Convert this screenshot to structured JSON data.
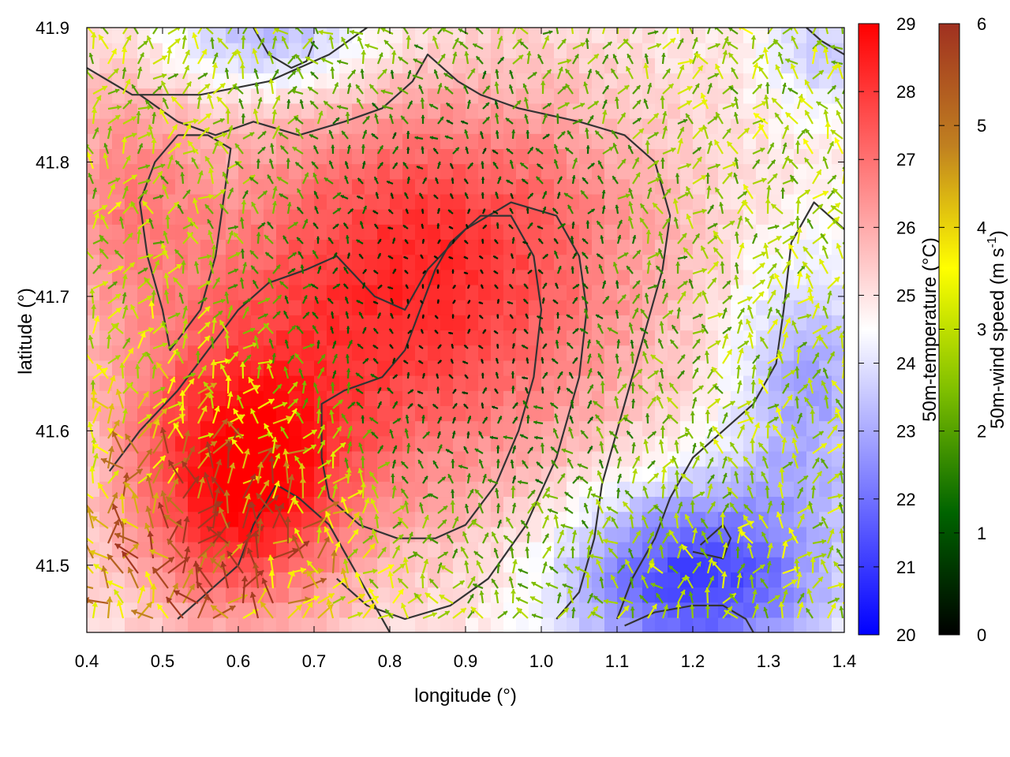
{
  "chart_data": {
    "type": "heatmap",
    "title": "",
    "xlabel": "longitude (°)",
    "ylabel": "latitude (°)",
    "xlim": [
      0.4,
      1.4
    ],
    "ylim": [
      41.45,
      41.9
    ],
    "x_ticks": [
      0.4,
      0.5,
      0.6,
      0.7,
      0.8,
      0.9,
      1.0,
      1.1,
      1.2,
      1.3,
      1.4
    ],
    "x_tick_labels": [
      "0.4",
      "0.5",
      "0.6",
      "0.7",
      "0.8",
      "0.9",
      "1.0",
      "1.1",
      "1.2",
      "1.3",
      "1.4"
    ],
    "y_ticks": [
      41.5,
      41.6,
      41.7,
      41.8,
      41.9
    ],
    "y_tick_labels": [
      "41.5",
      "41.6",
      "41.7",
      "41.8",
      "41.9"
    ],
    "colorbars": [
      {
        "name": "temperature",
        "label": "50m-temperature (°C)",
        "range": [
          20,
          29
        ],
        "ticks": [
          20,
          21,
          22,
          23,
          24,
          25,
          26,
          27,
          28,
          29
        ],
        "tick_labels": [
          "20",
          "21",
          "22",
          "23",
          "24",
          "25",
          "26",
          "27",
          "28",
          "29"
        ],
        "colors": [
          "#0000ff",
          "#ffffff",
          "#ff0000"
        ]
      },
      {
        "name": "wind_speed",
        "label_main": "50m-wind speed (m s",
        "label_sup": "-1",
        "label_end": ")",
        "range": [
          0,
          6
        ],
        "ticks": [
          0,
          1,
          2,
          3,
          4,
          5,
          6
        ],
        "tick_labels": [
          "0",
          "1",
          "2",
          "3",
          "4",
          "5",
          "6"
        ],
        "colors": [
          "#000000",
          "#006400",
          "#7fbf00",
          "#ffff00",
          "#c08020",
          "#a03020"
        ]
      }
    ],
    "temperature_field": {
      "background": 24.8,
      "features": [
        {
          "lon": 0.6,
          "lat": 41.56,
          "amp": 3.6,
          "sigma_lon": 0.1,
          "sigma_lat": 0.07
        },
        {
          "lon": 0.8,
          "lat": 41.66,
          "amp": 2.3,
          "sigma_lon": 0.22,
          "sigma_lat": 0.1
        },
        {
          "lon": 0.88,
          "lat": 41.76,
          "amp": 1.9,
          "sigma_lon": 0.2,
          "sigma_lat": 0.08
        },
        {
          "lon": 0.45,
          "lat": 41.78,
          "amp": 1.5,
          "sigma_lon": 0.07,
          "sigma_lat": 0.07
        },
        {
          "lon": 1.2,
          "lat": 41.49,
          "amp": -3.8,
          "sigma_lon": 0.12,
          "sigma_lat": 0.05
        },
        {
          "lon": 1.35,
          "lat": 41.63,
          "amp": -2.0,
          "sigma_lon": 0.07,
          "sigma_lat": 0.07
        },
        {
          "lon": 0.65,
          "lat": 41.89,
          "amp": -1.8,
          "sigma_lon": 0.1,
          "sigma_lat": 0.03
        },
        {
          "lon": 1.37,
          "lat": 41.88,
          "amp": -1.2,
          "sigma_lon": 0.05,
          "sigma_lat": 0.03
        }
      ]
    },
    "wind_field": {
      "calm_centers": [
        {
          "lon": 0.88,
          "lat": 41.7,
          "sigma_lon": 0.17,
          "sigma_lat": 0.12
        }
      ],
      "strong_centers": [
        {
          "lon": 0.57,
          "lat": 41.52,
          "amp": 3.4,
          "sigma_lon": 0.12,
          "sigma_lat": 0.07
        }
      ],
      "base_speed": 2.8
    },
    "contours": [
      {
        "name": "outer-terrain-contour",
        "points": [
          [
            0.77,
            41.9
          ],
          [
            0.72,
            41.88
          ],
          [
            0.64,
            41.86
          ],
          [
            0.55,
            41.85
          ],
          [
            0.46,
            41.85
          ],
          [
            0.4,
            41.87
          ]
        ]
      },
      {
        "name": "main-terrain-contour",
        "points": [
          [
            0.47,
            41.85
          ],
          [
            0.52,
            41.83
          ],
          [
            0.57,
            41.82
          ],
          [
            0.62,
            41.83
          ],
          [
            0.68,
            41.82
          ],
          [
            0.74,
            41.83
          ],
          [
            0.79,
            41.84
          ],
          [
            0.83,
            41.86
          ],
          [
            0.85,
            41.88
          ],
          [
            0.89,
            41.86
          ],
          [
            0.92,
            41.85
          ],
          [
            0.97,
            41.84
          ],
          [
            1.05,
            41.83
          ],
          [
            1.11,
            41.82
          ],
          [
            1.15,
            41.8
          ],
          [
            1.17,
            41.76
          ],
          [
            1.16,
            41.72
          ],
          [
            1.14,
            41.68
          ],
          [
            1.12,
            41.64
          ],
          [
            1.1,
            41.6
          ],
          [
            1.08,
            41.56
          ],
          [
            1.07,
            41.52
          ],
          [
            1.05,
            41.48
          ],
          [
            1.02,
            41.46
          ]
        ]
      },
      {
        "name": "left-ridge-contour",
        "points": [
          [
            0.52,
            41.82
          ],
          [
            0.49,
            41.8
          ],
          [
            0.47,
            41.77
          ],
          [
            0.48,
            41.73
          ],
          [
            0.5,
            41.69
          ],
          [
            0.51,
            41.66
          ],
          [
            0.55,
            41.69
          ],
          [
            0.57,
            41.73
          ],
          [
            0.58,
            41.77
          ],
          [
            0.59,
            41.81
          ],
          [
            0.56,
            41.82
          ],
          [
            0.52,
            41.82
          ]
        ]
      },
      {
        "name": "central-terrain-contour",
        "points": [
          [
            0.43,
            41.57
          ],
          [
            0.47,
            41.6
          ],
          [
            0.52,
            41.63
          ],
          [
            0.56,
            41.66
          ],
          [
            0.6,
            41.69
          ],
          [
            0.64,
            41.71
          ],
          [
            0.69,
            41.72
          ],
          [
            0.73,
            41.73
          ],
          [
            0.78,
            41.7
          ],
          [
            0.82,
            41.69
          ],
          [
            0.85,
            41.72
          ],
          [
            0.9,
            41.75
          ],
          [
            0.96,
            41.77
          ],
          [
            1.02,
            41.76
          ],
          [
            1.05,
            41.73
          ],
          [
            1.06,
            41.69
          ],
          [
            1.05,
            41.64
          ],
          [
            1.02,
            41.58
          ],
          [
            0.98,
            41.53
          ],
          [
            0.93,
            41.49
          ],
          [
            0.88,
            41.47
          ],
          [
            0.82,
            41.46
          ],
          [
            0.77,
            41.47
          ],
          [
            0.73,
            41.49
          ]
        ]
      },
      {
        "name": "inner-terrain-contour",
        "points": [
          [
            0.72,
            41.55
          ],
          [
            0.71,
            41.58
          ],
          [
            0.71,
            41.62
          ],
          [
            0.74,
            41.63
          ],
          [
            0.79,
            41.64
          ],
          [
            0.82,
            41.66
          ],
          [
            0.84,
            41.69
          ],
          [
            0.86,
            41.72
          ],
          [
            0.88,
            41.74
          ],
          [
            0.92,
            41.76
          ],
          [
            0.96,
            41.76
          ],
          [
            0.99,
            41.73
          ],
          [
            1.0,
            41.69
          ],
          [
            0.99,
            41.64
          ],
          [
            0.97,
            41.6
          ],
          [
            0.94,
            41.56
          ],
          [
            0.9,
            41.53
          ],
          [
            0.86,
            41.52
          ],
          [
            0.81,
            41.52
          ],
          [
            0.76,
            41.53
          ],
          [
            0.72,
            41.55
          ]
        ]
      },
      {
        "name": "southwest-terrain-contour",
        "points": [
          [
            0.52,
            41.46
          ],
          [
            0.56,
            41.48
          ],
          [
            0.6,
            41.5
          ],
          [
            0.62,
            41.53
          ],
          [
            0.65,
            41.56
          ],
          [
            0.68,
            41.55
          ],
          [
            0.72,
            41.53
          ],
          [
            0.75,
            41.5
          ],
          [
            0.78,
            41.47
          ],
          [
            0.8,
            41.45
          ]
        ]
      },
      {
        "name": "east-terrain-contour",
        "points": [
          [
            1.4,
            41.75
          ],
          [
            1.36,
            41.77
          ],
          [
            1.33,
            41.74
          ],
          [
            1.32,
            41.69
          ],
          [
            1.31,
            41.65
          ],
          [
            1.28,
            41.62
          ],
          [
            1.24,
            41.6
          ],
          [
            1.2,
            41.58
          ],
          [
            1.17,
            41.55
          ],
          [
            1.15,
            41.52
          ],
          [
            1.12,
            41.49
          ],
          [
            1.1,
            41.46
          ]
        ]
      },
      {
        "name": "southeast-small-contour",
        "points": [
          [
            1.11,
            41.455
          ],
          [
            1.15,
            41.465
          ],
          [
            1.2,
            41.47
          ],
          [
            1.24,
            41.47
          ],
          [
            1.27,
            41.46
          ],
          [
            1.28,
            41.45
          ]
        ]
      },
      {
        "name": "blue-basin-contour",
        "points": [
          [
            1.2,
            41.51
          ],
          [
            1.24,
            41.505
          ],
          [
            1.25,
            41.52
          ],
          [
            1.24,
            41.53
          ],
          [
            1.21,
            41.515
          ]
        ]
      },
      {
        "name": "north-hill-contour",
        "points": [
          [
            0.62,
            41.9
          ],
          [
            0.64,
            41.88
          ],
          [
            0.67,
            41.87
          ],
          [
            0.69,
            41.875
          ],
          [
            0.7,
            41.89
          ]
        ]
      },
      {
        "name": "northeast-contour",
        "points": [
          [
            1.4,
            41.88
          ],
          [
            1.37,
            41.89
          ],
          [
            1.35,
            41.9
          ]
        ]
      }
    ]
  }
}
